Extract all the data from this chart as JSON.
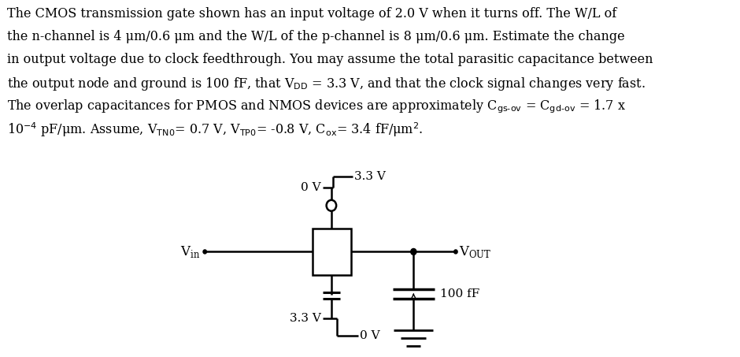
{
  "bg_color": "#ffffff",
  "fs_text": 11.5,
  "fs_circuit": 11.0,
  "lw": 1.8,
  "line1": "The CMOS transmission gate shown has an input voltage of 2.0 V when it turns off. The W/L of",
  "line2": "the n-channel is 4 μm/0.6 μm and the W/L of the p-channel is 8 μm/0.6 μm. Estimate the change",
  "line3": "in output voltage due to clock feedthrough. You may assume the total parasitic capacitance between",
  "line4": "the output node and ground is 100 fF, that V$_{\\mathrm{DD}}$ = 3.3 V, and that the clock signal changes very fast.",
  "line5": "The overlap capacitances for PMOS and NMOS devices are approximately C$_{\\mathrm{gs\\text{-}ov}}$ = C$_{\\mathrm{gd\\text{-}ov}}$ = 1.7 x",
  "line6": "10$^{-4}$ pF/μm. Assume, V$_{\\mathrm{TN0}}$= 0.7 V, V$_{\\mathrm{TP0}}$= -0.8 V, C$_{\\mathrm{ox}}$= 3.4 fF/μm$^{2}$."
}
